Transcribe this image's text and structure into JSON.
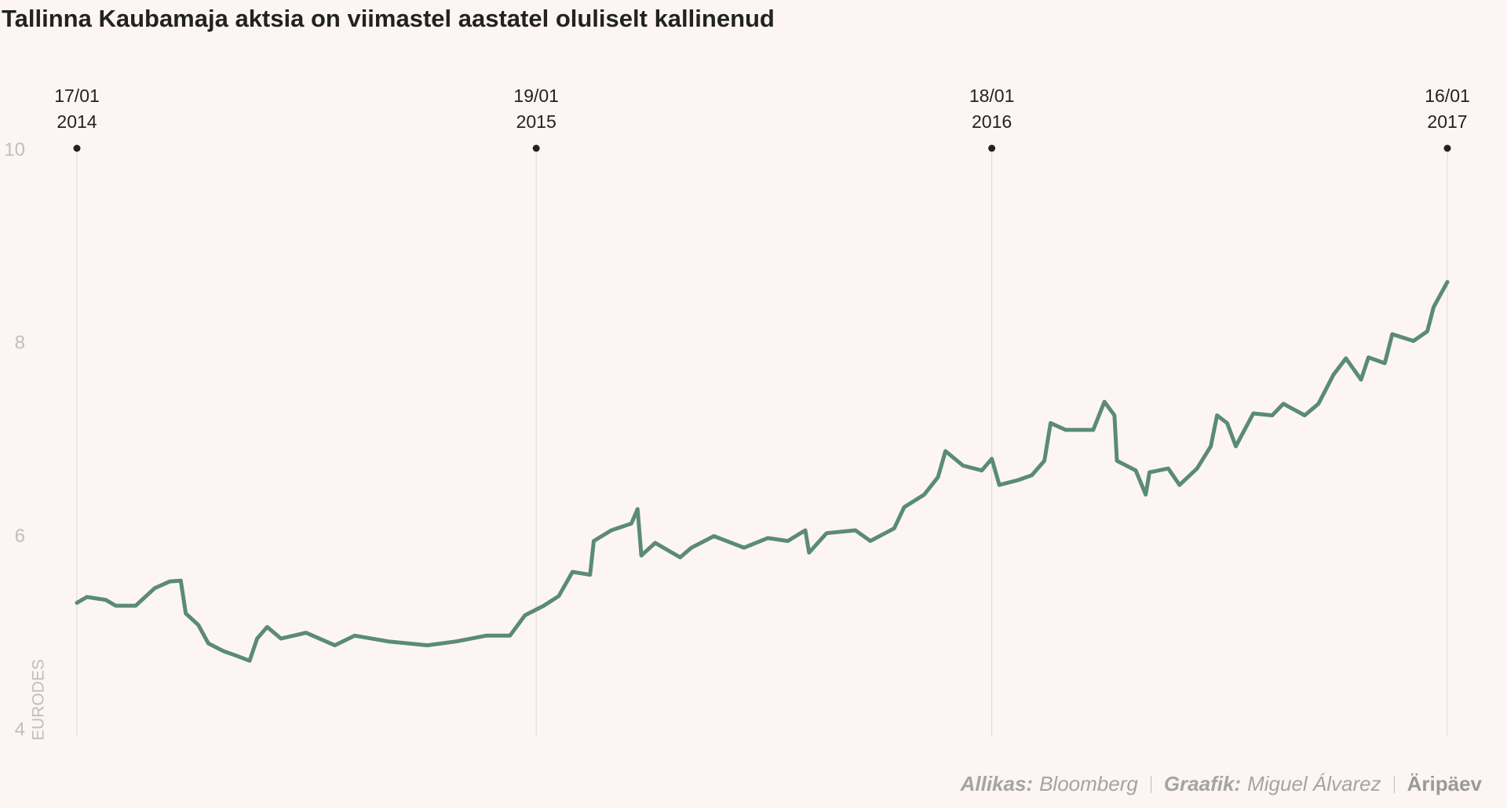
{
  "chart_data": {
    "type": "line",
    "title": "Tallinna Kaubamaja aktsia on viimastel aastatel oluliselt kallinenud",
    "ylabel": "EURODES",
    "ylim": [
      4,
      10
    ],
    "yticks": [
      4,
      6,
      8,
      10
    ],
    "xlim": [
      "2014-01-17",
      "2017-01-16"
    ],
    "xticks": [
      {
        "value": "2014-01-17",
        "label": [
          "17/01",
          "2014"
        ]
      },
      {
        "value": "2015-01-19",
        "label": [
          "19/01",
          "2015"
        ]
      },
      {
        "value": "2016-01-18",
        "label": [
          "18/01",
          "2016"
        ]
      },
      {
        "value": "2017-01-16",
        "label": [
          "16/01",
          "2017"
        ]
      }
    ],
    "x": [
      "2014-01-17",
      "2014-01-25",
      "2014-02-09",
      "2014-02-17",
      "2014-03-05",
      "2014-03-20",
      "2014-04-01",
      "2014-04-10",
      "2014-04-14",
      "2014-04-24",
      "2014-05-02",
      "2014-05-14",
      "2014-05-25",
      "2014-06-04",
      "2014-06-10",
      "2014-06-18",
      "2014-06-29",
      "2014-07-19",
      "2014-08-11",
      "2014-08-27",
      "2014-09-23",
      "2014-10-24",
      "2014-11-16",
      "2014-12-10",
      "2014-12-29",
      "2015-01-10",
      "2015-01-25",
      "2015-02-06",
      "2015-02-17",
      "2015-03-03",
      "2015-03-06",
      "2015-03-20",
      "2015-04-05",
      "2015-04-10",
      "2015-04-13",
      "2015-04-24",
      "2015-05-14",
      "2015-05-23",
      "2015-06-10",
      "2015-07-04",
      "2015-07-23",
      "2015-08-08",
      "2015-08-22",
      "2015-08-25",
      "2015-09-08",
      "2015-10-01",
      "2015-10-13",
      "2015-11-01",
      "2015-11-09",
      "2015-11-25",
      "2015-12-06",
      "2015-12-12",
      "2015-12-26",
      "2016-01-10",
      "2016-01-18",
      "2016-01-24",
      "2016-02-08",
      "2016-02-19",
      "2016-02-29",
      "2016-03-05",
      "2016-03-17",
      "2016-04-08",
      "2016-04-17",
      "2016-04-25",
      "2016-04-27",
      "2016-05-12",
      "2016-05-20",
      "2016-05-23",
      "2016-06-07",
      "2016-06-16",
      "2016-06-30",
      "2016-07-11",
      "2016-07-16",
      "2016-07-24",
      "2016-07-31",
      "2016-08-14",
      "2016-08-29",
      "2016-09-07",
      "2016-09-24",
      "2016-10-05",
      "2016-10-17",
      "2016-10-27",
      "2016-11-08",
      "2016-11-14",
      "2016-11-27",
      "2016-12-03",
      "2016-12-20",
      "2016-12-31",
      "2017-01-05",
      "2017-01-16"
    ],
    "series": [
      {
        "name": "Tallinna Kaubamaja",
        "color": "#5a8a7a",
        "values": [
          5.32,
          5.38,
          5.35,
          5.29,
          5.29,
          5.47,
          5.54,
          5.55,
          5.21,
          5.09,
          4.9,
          4.82,
          4.77,
          4.72,
          4.95,
          5.07,
          4.95,
          5.01,
          4.88,
          4.98,
          4.92,
          4.88,
          4.92,
          4.98,
          4.98,
          5.19,
          5.29,
          5.39,
          5.64,
          5.61,
          5.96,
          6.07,
          6.14,
          6.29,
          5.81,
          5.94,
          5.79,
          5.89,
          6.01,
          5.89,
          5.99,
          5.96,
          6.07,
          5.84,
          6.04,
          6.07,
          5.96,
          6.09,
          6.31,
          6.44,
          6.62,
          6.89,
          6.74,
          6.69,
          6.81,
          6.54,
          6.59,
          6.64,
          6.79,
          7.18,
          7.11,
          7.11,
          7.4,
          7.26,
          6.79,
          6.69,
          6.44,
          6.67,
          6.71,
          6.54,
          6.71,
          6.94,
          7.26,
          7.18,
          6.94,
          7.28,
          7.26,
          7.38,
          7.26,
          7.38,
          7.68,
          7.85,
          7.63,
          7.86,
          7.8,
          8.1,
          8.03,
          8.13,
          8.38,
          8.64
        ]
      }
    ]
  },
  "footer": {
    "source_label": "Allikas:",
    "source": "Bloomberg",
    "author_label": "Graafik:",
    "author": "Miguel Álvarez",
    "brand": "Äripäev"
  }
}
